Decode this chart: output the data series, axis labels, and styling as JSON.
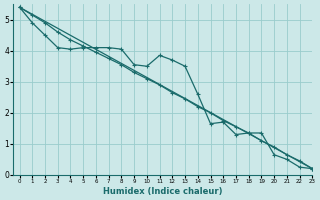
{
  "xlabel": "Humidex (Indice chaleur)",
  "ylabel": "",
  "xlim": [
    -0.5,
    23
  ],
  "ylim": [
    0,
    5.5
  ],
  "xticks": [
    0,
    1,
    2,
    3,
    4,
    5,
    6,
    7,
    8,
    9,
    10,
    11,
    12,
    13,
    14,
    15,
    16,
    17,
    18,
    19,
    20,
    21,
    22,
    23
  ],
  "yticks": [
    0,
    1,
    2,
    3,
    4,
    5
  ],
  "bg_color": "#cce8e8",
  "grid_color": "#99cccc",
  "line_color": "#1a6b6b",
  "line1_x": [
    0,
    1,
    2,
    3,
    4,
    5,
    6,
    7,
    8,
    9,
    10,
    11,
    12,
    13,
    14,
    15,
    16,
    17,
    18,
    19,
    20,
    21,
    22,
    23
  ],
  "line1_y": [
    5.4,
    4.9,
    4.5,
    4.1,
    4.05,
    4.1,
    4.1,
    4.1,
    4.05,
    3.55,
    3.5,
    3.85,
    3.7,
    3.5,
    2.6,
    1.65,
    1.7,
    1.3,
    1.35,
    1.35,
    0.65,
    0.5,
    0.25,
    0.2
  ],
  "line2_x": [
    0,
    1,
    2,
    3,
    4,
    5,
    6,
    7,
    8,
    9,
    10,
    11,
    12,
    13,
    14,
    15,
    16,
    17,
    18,
    19,
    20,
    21,
    22,
    23
  ],
  "line2_y": [
    5.4,
    5.15,
    4.9,
    4.6,
    4.35,
    4.15,
    3.95,
    3.75,
    3.55,
    3.3,
    3.1,
    2.9,
    2.65,
    2.45,
    2.2,
    2.0,
    1.75,
    1.55,
    1.35,
    1.1,
    0.9,
    0.65,
    0.45,
    0.2
  ],
  "line3_x": [
    0,
    23
  ],
  "line3_y": [
    5.4,
    0.2
  ]
}
